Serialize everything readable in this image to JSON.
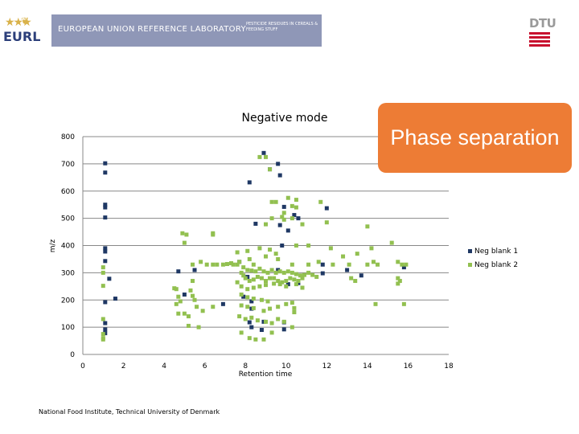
{
  "header": {
    "logo_text": "EURL",
    "banner_title": "EUROPEAN UNION REFERENCE LABORATORY",
    "banner_subtitle": "PESTICIDE RESIDUES IN CEREALS & FEEDING STUFF",
    "institution_logo": "DTU"
  },
  "callout": {
    "text": "Phase separation",
    "color": "#ed7c35"
  },
  "footer": {
    "text": "National Food Institute, Technical University of Denmark"
  },
  "chart_data": {
    "type": "scatter",
    "title": "Negative mode",
    "xlabel": "Retention time",
    "ylabel": "m/z",
    "xlim": [
      0,
      18
    ],
    "ylim": [
      0,
      800
    ],
    "xticks": [
      0,
      2,
      4,
      6,
      8,
      10,
      12,
      14,
      16,
      18
    ],
    "yticks": [
      0,
      100,
      200,
      300,
      400,
      500,
      600,
      700,
      800
    ],
    "grid": "horizontal",
    "legend_position": "right",
    "series": [
      {
        "name": "Neg blank 1",
        "color": "#1f3864",
        "points": [
          [
            1.1,
            702
          ],
          [
            1.1,
            668
          ],
          [
            1.1,
            550
          ],
          [
            1.1,
            540
          ],
          [
            1.1,
            503
          ],
          [
            1.1,
            390
          ],
          [
            1.1,
            378
          ],
          [
            1.1,
            343
          ],
          [
            1.1,
            192
          ],
          [
            1.1,
            115
          ],
          [
            1.1,
            92
          ],
          [
            1.1,
            78
          ],
          [
            1.3,
            278
          ],
          [
            1.6,
            205
          ],
          [
            4.7,
            305
          ],
          [
            5.0,
            220
          ],
          [
            8.2,
            632
          ],
          [
            8.5,
            480
          ],
          [
            8.9,
            740
          ],
          [
            9.2,
            680
          ],
          [
            9.6,
            700
          ],
          [
            9.7,
            658
          ],
          [
            9.9,
            542
          ],
          [
            9.7,
            475
          ],
          [
            10.1,
            455
          ],
          [
            10.4,
            512
          ],
          [
            10.6,
            500
          ],
          [
            10.1,
            258
          ],
          [
            10.6,
            262
          ],
          [
            11.8,
            330
          ],
          [
            11.8,
            298
          ],
          [
            12.0,
            537
          ],
          [
            7.7,
            340
          ],
          [
            7.9,
            212
          ],
          [
            8.3,
            195
          ],
          [
            8.3,
            168
          ],
          [
            8.2,
            118
          ],
          [
            8.3,
            100
          ],
          [
            8.8,
            90
          ],
          [
            8.9,
            120
          ],
          [
            9.9,
            118
          ],
          [
            9.9,
            92
          ],
          [
            9.8,
            400
          ],
          [
            13.0,
            310
          ],
          [
            15.8,
            320
          ],
          [
            13.7,
            290
          ],
          [
            5.5,
            310
          ],
          [
            6.9,
            185
          ],
          [
            9.6,
            310
          ],
          [
            8.1,
            285
          ]
        ]
      },
      {
        "name": "Neg blank 2",
        "color": "#92c050",
        "points": [
          [
            9.0,
            725
          ],
          [
            8.7,
            725
          ],
          [
            9.2,
            680
          ],
          [
            9.3,
            560
          ],
          [
            9.5,
            560
          ],
          [
            10.1,
            575
          ],
          [
            10.5,
            568
          ],
          [
            10.3,
            545
          ],
          [
            10.5,
            540
          ],
          [
            9.9,
            520
          ],
          [
            9.8,
            505
          ],
          [
            10.3,
            500
          ],
          [
            9.3,
            500
          ],
          [
            9.9,
            495
          ],
          [
            9.0,
            478
          ],
          [
            10.8,
            478
          ],
          [
            11.7,
            560
          ],
          [
            12.0,
            485
          ],
          [
            14.0,
            470
          ],
          [
            4.9,
            445
          ],
          [
            5.1,
            440
          ],
          [
            5.0,
            410
          ],
          [
            6.4,
            445
          ],
          [
            6.4,
            440
          ],
          [
            10.5,
            400
          ],
          [
            11.1,
            400
          ],
          [
            12.2,
            390
          ],
          [
            12.8,
            360
          ],
          [
            14.2,
            390
          ],
          [
            15.2,
            410
          ],
          [
            7.6,
            375
          ],
          [
            8.1,
            380
          ],
          [
            8.2,
            350
          ],
          [
            8.4,
            330
          ],
          [
            8.7,
            390
          ],
          [
            9.0,
            360
          ],
          [
            9.2,
            385
          ],
          [
            9.5,
            370
          ],
          [
            9.6,
            350
          ],
          [
            10.3,
            330
          ],
          [
            11.1,
            330
          ],
          [
            11.6,
            340
          ],
          [
            12.3,
            330
          ],
          [
            13.1,
            330
          ],
          [
            14.0,
            330
          ],
          [
            14.3,
            340
          ],
          [
            14.5,
            330
          ],
          [
            13.5,
            370
          ],
          [
            15.5,
            340
          ],
          [
            15.7,
            330
          ],
          [
            15.9,
            330
          ],
          [
            1.0,
            320
          ],
          [
            1.0,
            300
          ],
          [
            1.0,
            252
          ],
          [
            1.0,
            130
          ],
          [
            1.0,
            75
          ],
          [
            1.0,
            55
          ],
          [
            1.0,
            60
          ],
          [
            4.5,
            243
          ],
          [
            4.6,
            240
          ],
          [
            4.7,
            212
          ],
          [
            4.8,
            195
          ],
          [
            4.6,
            185
          ],
          [
            4.7,
            150
          ],
          [
            5.0,
            150
          ],
          [
            5.3,
            235
          ],
          [
            5.4,
            215
          ],
          [
            5.5,
            200
          ],
          [
            5.6,
            175
          ],
          [
            5.2,
            140
          ],
          [
            5.4,
            270
          ],
          [
            5.4,
            330
          ],
          [
            5.8,
            340
          ],
          [
            6.1,
            330
          ],
          [
            6.4,
            330
          ],
          [
            6.6,
            330
          ],
          [
            6.9,
            330
          ],
          [
            7.1,
            332
          ],
          [
            7.3,
            335
          ],
          [
            7.4,
            330
          ],
          [
            7.6,
            330
          ],
          [
            7.7,
            340
          ],
          [
            7.9,
            320
          ],
          [
            8.1,
            310
          ],
          [
            8.3,
            308
          ],
          [
            8.5,
            305
          ],
          [
            8.7,
            315
          ],
          [
            8.9,
            305
          ],
          [
            9.1,
            300
          ],
          [
            9.3,
            310
          ],
          [
            9.5,
            300
          ],
          [
            9.7,
            305
          ],
          [
            9.9,
            300
          ],
          [
            10.1,
            305
          ],
          [
            10.3,
            300
          ],
          [
            10.5,
            295
          ],
          [
            10.7,
            290
          ],
          [
            10.9,
            292
          ],
          [
            11.1,
            300
          ],
          [
            11.3,
            292
          ],
          [
            11.5,
            285
          ],
          [
            7.8,
            300
          ],
          [
            7.9,
            290
          ],
          [
            8.0,
            280
          ],
          [
            8.2,
            270
          ],
          [
            8.4,
            275
          ],
          [
            8.6,
            285
          ],
          [
            8.8,
            280
          ],
          [
            9.0,
            270
          ],
          [
            9.2,
            280
          ],
          [
            9.4,
            280
          ],
          [
            9.6,
            270
          ],
          [
            9.8,
            265
          ],
          [
            10.0,
            270
          ],
          [
            10.2,
            280
          ],
          [
            10.4,
            275
          ],
          [
            10.6,
            270
          ],
          [
            10.8,
            280
          ],
          [
            7.6,
            265
          ],
          [
            7.8,
            250
          ],
          [
            8.1,
            240
          ],
          [
            8.4,
            245
          ],
          [
            8.7,
            250
          ],
          [
            9.0,
            255
          ],
          [
            9.4,
            260
          ],
          [
            9.7,
            258
          ],
          [
            10.0,
            250
          ],
          [
            10.5,
            258
          ],
          [
            10.8,
            245
          ],
          [
            13.2,
            280
          ],
          [
            13.4,
            270
          ],
          [
            15.5,
            280
          ],
          [
            15.6,
            270
          ],
          [
            15.5,
            260
          ],
          [
            7.8,
            220
          ],
          [
            8.1,
            210
          ],
          [
            8.4,
            205
          ],
          [
            8.8,
            200
          ],
          [
            9.1,
            195
          ],
          [
            7.8,
            180
          ],
          [
            8.1,
            175
          ],
          [
            8.4,
            170
          ],
          [
            8.9,
            160
          ],
          [
            9.2,
            168
          ],
          [
            9.6,
            175
          ],
          [
            10.0,
            185
          ],
          [
            10.3,
            190
          ],
          [
            10.4,
            170
          ],
          [
            7.7,
            140
          ],
          [
            8.0,
            130
          ],
          [
            8.3,
            135
          ],
          [
            8.6,
            125
          ],
          [
            9.0,
            120
          ],
          [
            9.3,
            115
          ],
          [
            9.6,
            130
          ],
          [
            9.9,
            120
          ],
          [
            8.2,
            60
          ],
          [
            8.5,
            55
          ],
          [
            8.9,
            55
          ],
          [
            7.8,
            80
          ],
          [
            9.3,
            80
          ],
          [
            10.3,
            100
          ],
          [
            6.4,
            175
          ],
          [
            5.7,
            100
          ],
          [
            5.9,
            160
          ],
          [
            14.4,
            185
          ],
          [
            15.8,
            185
          ],
          [
            5.2,
            105
          ],
          [
            10.4,
            155
          ]
        ]
      }
    ]
  }
}
